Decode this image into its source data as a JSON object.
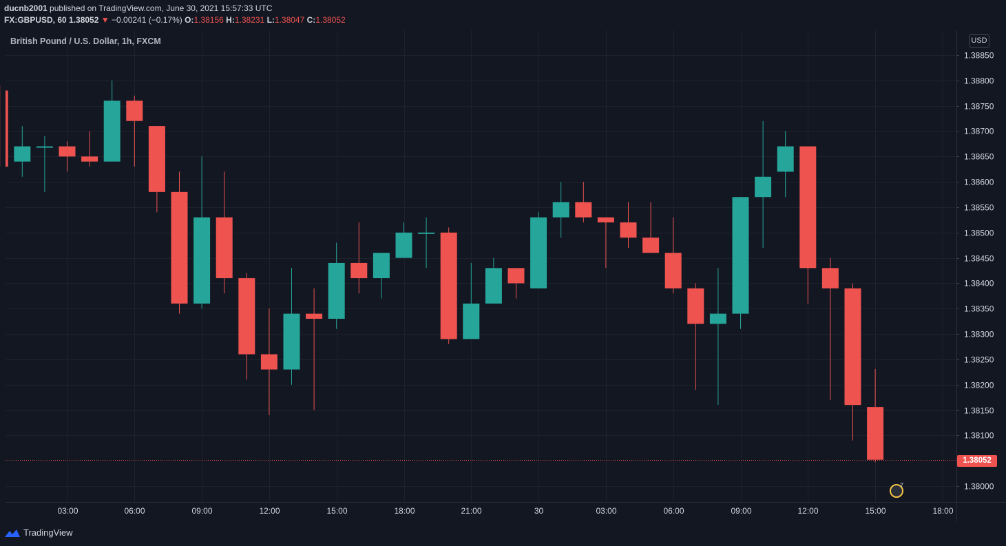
{
  "header": {
    "author": "ducnb2001",
    "published_text": "published on TradingView.com, June 30, 2021 15:57:33 UTC",
    "symbol": "FX:GBPUSD, 60",
    "last": "1.38052",
    "change": "−0.00241 (−0.17%)",
    "o_label": "O:",
    "o_value": "1.38156",
    "h_label": "H:",
    "h_value": "1.38231",
    "l_label": "L:",
    "l_value": "1.38047",
    "c_label": "C:",
    "c_value": "1.38052"
  },
  "series_label": "British Pound / U.S. Dollar, 1h, FXCM",
  "currency": "USD",
  "current_price_label": "1.38052",
  "events_count": "7",
  "brand": "TradingView",
  "colors": {
    "background": "#131722",
    "grid": "#1e222d",
    "up": "#26a69a",
    "down": "#ef5350",
    "axis_text": "#d1d4dc"
  },
  "chart_data": {
    "type": "candlestick",
    "title": "British Pound / U.S. Dollar, 1h, FXCM",
    "ylim": [
      1.3796,
      1.3889
    ],
    "y_ticks": [
      "1.38850",
      "1.38800",
      "1.38750",
      "1.38700",
      "1.38650",
      "1.38600",
      "1.38550",
      "1.38500",
      "1.38450",
      "1.38400",
      "1.38350",
      "1.38300",
      "1.38250",
      "1.38200",
      "1.38150",
      "1.38100",
      "1.38000"
    ],
    "x_tick_labels": [
      {
        "label": "03:00",
        "bar": 3
      },
      {
        "label": "06:00",
        "bar": 6
      },
      {
        "label": "09:00",
        "bar": 9
      },
      {
        "label": "12:00",
        "bar": 12
      },
      {
        "label": "15:00",
        "bar": 15
      },
      {
        "label": "18:00",
        "bar": 18
      },
      {
        "label": "21:00",
        "bar": 21
      },
      {
        "label": "30",
        "bar": 24
      },
      {
        "label": "03:00",
        "bar": 27
      },
      {
        "label": "06:00",
        "bar": 30
      },
      {
        "label": "09:00",
        "bar": 33
      },
      {
        "label": "12:00",
        "bar": 36
      },
      {
        "label": "15:00",
        "bar": 39
      },
      {
        "label": "18:00",
        "bar": 42
      }
    ],
    "first_bar": 0,
    "last_close": 1.38052,
    "candles": [
      {
        "o": 1.3878,
        "h": 1.3879,
        "l": 1.3863,
        "c": 1.3863
      },
      {
        "o": 1.3864,
        "h": 1.3871,
        "l": 1.3861,
        "c": 1.3867
      },
      {
        "o": 1.3867,
        "h": 1.3869,
        "l": 1.3858,
        "c": 1.3867
      },
      {
        "o": 1.3867,
        "h": 1.3868,
        "l": 1.3862,
        "c": 1.3865
      },
      {
        "o": 1.3865,
        "h": 1.387,
        "l": 1.3863,
        "c": 1.3864
      },
      {
        "o": 1.3864,
        "h": 1.388,
        "l": 1.3864,
        "c": 1.3876
      },
      {
        "o": 1.3876,
        "h": 1.3877,
        "l": 1.3863,
        "c": 1.3872
      },
      {
        "o": 1.3871,
        "h": 1.3871,
        "l": 1.3854,
        "c": 1.3858
      },
      {
        "o": 1.3858,
        "h": 1.3862,
        "l": 1.3834,
        "c": 1.3836
      },
      {
        "o": 1.3836,
        "h": 1.3865,
        "l": 1.3835,
        "c": 1.3853
      },
      {
        "o": 1.3853,
        "h": 1.3862,
        "l": 1.3838,
        "c": 1.3841
      },
      {
        "o": 1.3841,
        "h": 1.3842,
        "l": 1.3821,
        "c": 1.3826
      },
      {
        "o": 1.3826,
        "h": 1.3835,
        "l": 1.3814,
        "c": 1.3823
      },
      {
        "o": 1.3823,
        "h": 1.3843,
        "l": 1.382,
        "c": 1.3834
      },
      {
        "o": 1.3834,
        "h": 1.3839,
        "l": 1.3815,
        "c": 1.3833
      },
      {
        "o": 1.3833,
        "h": 1.3848,
        "l": 1.3831,
        "c": 1.3844
      },
      {
        "o": 1.3844,
        "h": 1.3852,
        "l": 1.3838,
        "c": 1.3841
      },
      {
        "o": 1.3841,
        "h": 1.3846,
        "l": 1.3837,
        "c": 1.3846
      },
      {
        "o": 1.3845,
        "h": 1.3852,
        "l": 1.3845,
        "c": 1.385
      },
      {
        "o": 1.385,
        "h": 1.3853,
        "l": 1.3843,
        "c": 1.385
      },
      {
        "o": 1.385,
        "h": 1.3851,
        "l": 1.3828,
        "c": 1.3829
      },
      {
        "o": 1.3829,
        "h": 1.3844,
        "l": 1.3829,
        "c": 1.3836
      },
      {
        "o": 1.3836,
        "h": 1.3845,
        "l": 1.3836,
        "c": 1.3843
      },
      {
        "o": 1.3843,
        "h": 1.3843,
        "l": 1.3837,
        "c": 1.384
      },
      {
        "o": 1.3839,
        "h": 1.3854,
        "l": 1.3839,
        "c": 1.3853
      },
      {
        "o": 1.3853,
        "h": 1.386,
        "l": 1.3849,
        "c": 1.3856
      },
      {
        "o": 1.3856,
        "h": 1.386,
        "l": 1.3852,
        "c": 1.3853
      },
      {
        "o": 1.3853,
        "h": 1.3853,
        "l": 1.3843,
        "c": 1.3852
      },
      {
        "o": 1.3852,
        "h": 1.3856,
        "l": 1.3847,
        "c": 1.3849
      },
      {
        "o": 1.3849,
        "h": 1.3856,
        "l": 1.3846,
        "c": 1.3846
      },
      {
        "o": 1.3846,
        "h": 1.3853,
        "l": 1.3838,
        "c": 1.3839
      },
      {
        "o": 1.3839,
        "h": 1.384,
        "l": 1.3819,
        "c": 1.3832
      },
      {
        "o": 1.3832,
        "h": 1.3843,
        "l": 1.3816,
        "c": 1.3834
      },
      {
        "o": 1.3834,
        "h": 1.3857,
        "l": 1.3831,
        "c": 1.3857
      },
      {
        "o": 1.3857,
        "h": 1.3872,
        "l": 1.3847,
        "c": 1.3861
      },
      {
        "o": 1.3862,
        "h": 1.387,
        "l": 1.3857,
        "c": 1.3867
      },
      {
        "o": 1.3867,
        "h": 1.3867,
        "l": 1.3836,
        "c": 1.3843
      },
      {
        "o": 1.3843,
        "h": 1.3845,
        "l": 1.3817,
        "c": 1.3839
      },
      {
        "o": 1.3839,
        "h": 1.384,
        "l": 1.3809,
        "c": 1.3816
      },
      {
        "o": 1.38156,
        "h": 1.38231,
        "l": 1.38047,
        "c": 1.38052
      }
    ]
  }
}
